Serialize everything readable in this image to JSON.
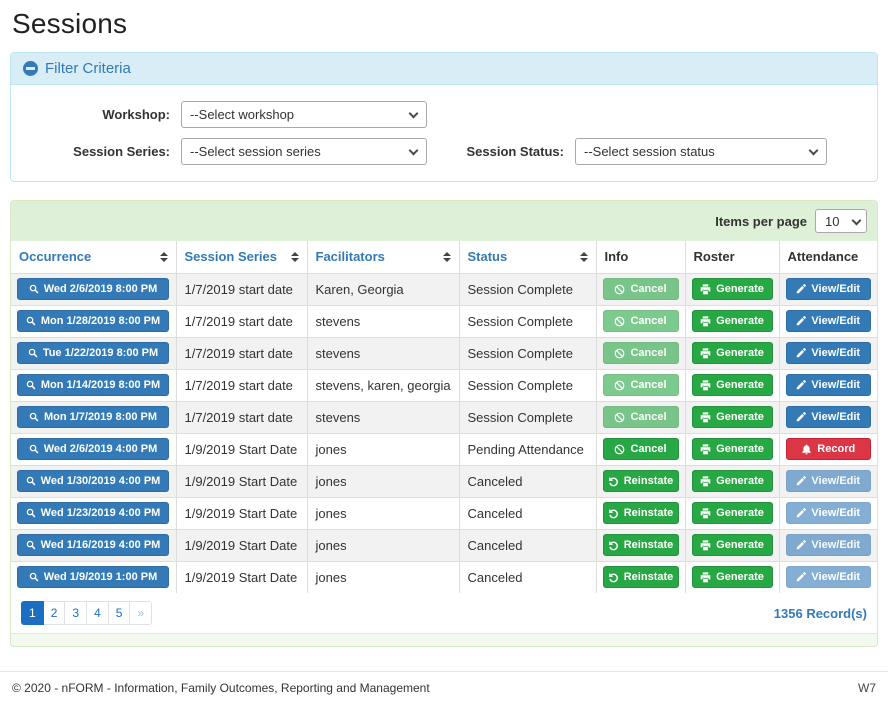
{
  "page": {
    "title": "Sessions"
  },
  "colors": {
    "primary": "#337ab7",
    "success": "#28a745",
    "danger": "#dc3545",
    "pagination_active": "#1b6ec2",
    "filter_heading_bg": "#d9edf7",
    "table_heading_bg": "#dff0d8"
  },
  "filter": {
    "heading": "Filter Criteria",
    "collapse_icon": "minus-circle-icon",
    "fields": [
      {
        "label": "Workshop:",
        "value": "--Select workshop"
      },
      {
        "label": "Session Series:",
        "value": "--Select session series"
      },
      {
        "label": "Session Status:",
        "value": "--Select session status"
      }
    ]
  },
  "table": {
    "items_per_page_label": "Items per page",
    "items_per_page_value": "10",
    "columns": [
      {
        "label": "Occurrence",
        "sortable": true
      },
      {
        "label": "Session Series",
        "sortable": true
      },
      {
        "label": "Facilitators",
        "sortable": true
      },
      {
        "label": "Status",
        "sortable": true
      },
      {
        "label": "Info",
        "sortable": false
      },
      {
        "label": "Roster",
        "sortable": false
      },
      {
        "label": "Attendance",
        "sortable": false
      }
    ],
    "rows": [
      {
        "occurrence": "Wed 2/6/2019 8:00 PM",
        "series": "1/7/2019 start date",
        "facilitators": "Karen, Georgia",
        "status": "Session Complete",
        "info": {
          "label": "Cancel",
          "icon": "ban",
          "variant": "success",
          "disabled": true
        },
        "roster": {
          "label": "Generate",
          "icon": "printer",
          "variant": "success",
          "disabled": false
        },
        "attendance": {
          "label": "View/Edit",
          "icon": "pencil",
          "variant": "primary",
          "disabled": false
        }
      },
      {
        "occurrence": "Mon 1/28/2019 8:00 PM",
        "series": "1/7/2019 start date",
        "facilitators": "stevens",
        "status": "Session Complete",
        "info": {
          "label": "Cancel",
          "icon": "ban",
          "variant": "success",
          "disabled": true
        },
        "roster": {
          "label": "Generate",
          "icon": "printer",
          "variant": "success",
          "disabled": false
        },
        "attendance": {
          "label": "View/Edit",
          "icon": "pencil",
          "variant": "primary",
          "disabled": false
        }
      },
      {
        "occurrence": "Tue 1/22/2019 8:00 PM",
        "series": "1/7/2019 start date",
        "facilitators": "stevens",
        "status": "Session Complete",
        "info": {
          "label": "Cancel",
          "icon": "ban",
          "variant": "success",
          "disabled": true
        },
        "roster": {
          "label": "Generate",
          "icon": "printer",
          "variant": "success",
          "disabled": false
        },
        "attendance": {
          "label": "View/Edit",
          "icon": "pencil",
          "variant": "primary",
          "disabled": false
        }
      },
      {
        "occurrence": "Mon 1/14/2019 8:00 PM",
        "series": "1/7/2019 start date",
        "facilitators": "stevens, karen, georgia",
        "status": "Session Complete",
        "info": {
          "label": "Cancel",
          "icon": "ban",
          "variant": "success",
          "disabled": true
        },
        "roster": {
          "label": "Generate",
          "icon": "printer",
          "variant": "success",
          "disabled": false
        },
        "attendance": {
          "label": "View/Edit",
          "icon": "pencil",
          "variant": "primary",
          "disabled": false
        }
      },
      {
        "occurrence": "Mon 1/7/2019 8:00 PM",
        "series": "1/7/2019 start date",
        "facilitators": "stevens",
        "status": "Session Complete",
        "info": {
          "label": "Cancel",
          "icon": "ban",
          "variant": "success",
          "disabled": true
        },
        "roster": {
          "label": "Generate",
          "icon": "printer",
          "variant": "success",
          "disabled": false
        },
        "attendance": {
          "label": "View/Edit",
          "icon": "pencil",
          "variant": "primary",
          "disabled": false
        }
      },
      {
        "occurrence": "Wed 2/6/2019 4:00 PM",
        "series": "1/9/2019 Start Date",
        "facilitators": "jones",
        "status": "Pending Attendance",
        "info": {
          "label": "Cancel",
          "icon": "ban",
          "variant": "success",
          "disabled": false
        },
        "roster": {
          "label": "Generate",
          "icon": "printer",
          "variant": "success",
          "disabled": false
        },
        "attendance": {
          "label": "Record",
          "icon": "bell",
          "variant": "danger",
          "disabled": false
        }
      },
      {
        "occurrence": "Wed 1/30/2019 4:00 PM",
        "series": "1/9/2019 Start Date",
        "facilitators": "jones",
        "status": "Canceled",
        "info": {
          "label": "Reinstate",
          "icon": "undo",
          "variant": "success",
          "disabled": false
        },
        "roster": {
          "label": "Generate",
          "icon": "printer",
          "variant": "success",
          "disabled": false
        },
        "attendance": {
          "label": "View/Edit",
          "icon": "pencil",
          "variant": "primary",
          "disabled": true
        }
      },
      {
        "occurrence": "Wed 1/23/2019 4:00 PM",
        "series": "1/9/2019 Start Date",
        "facilitators": "jones",
        "status": "Canceled",
        "info": {
          "label": "Reinstate",
          "icon": "undo",
          "variant": "success",
          "disabled": false
        },
        "roster": {
          "label": "Generate",
          "icon": "printer",
          "variant": "success",
          "disabled": false
        },
        "attendance": {
          "label": "View/Edit",
          "icon": "pencil",
          "variant": "primary",
          "disabled": true
        }
      },
      {
        "occurrence": "Wed 1/16/2019 4:00 PM",
        "series": "1/9/2019 Start Date",
        "facilitators": "jones",
        "status": "Canceled",
        "info": {
          "label": "Reinstate",
          "icon": "undo",
          "variant": "success",
          "disabled": false
        },
        "roster": {
          "label": "Generate",
          "icon": "printer",
          "variant": "success",
          "disabled": false
        },
        "attendance": {
          "label": "View/Edit",
          "icon": "pencil",
          "variant": "primary",
          "disabled": true
        }
      },
      {
        "occurrence": "Wed 1/9/2019 1:00 PM",
        "series": "1/9/2019 Start Date",
        "facilitators": "jones",
        "status": "Canceled",
        "info": {
          "label": "Reinstate",
          "icon": "undo",
          "variant": "success",
          "disabled": false
        },
        "roster": {
          "label": "Generate",
          "icon": "printer",
          "variant": "success",
          "disabled": false
        },
        "attendance": {
          "label": "View/Edit",
          "icon": "pencil",
          "variant": "primary",
          "disabled": true
        }
      }
    ]
  },
  "pagination": {
    "pages": [
      "1",
      "2",
      "3",
      "4",
      "5",
      "»"
    ],
    "active": "1",
    "records_label": "1356 Record(s)"
  },
  "footer": {
    "copyright": "© 2020 - nFORM - Information, Family Outcomes, Reporting and Management",
    "version": "W7"
  }
}
